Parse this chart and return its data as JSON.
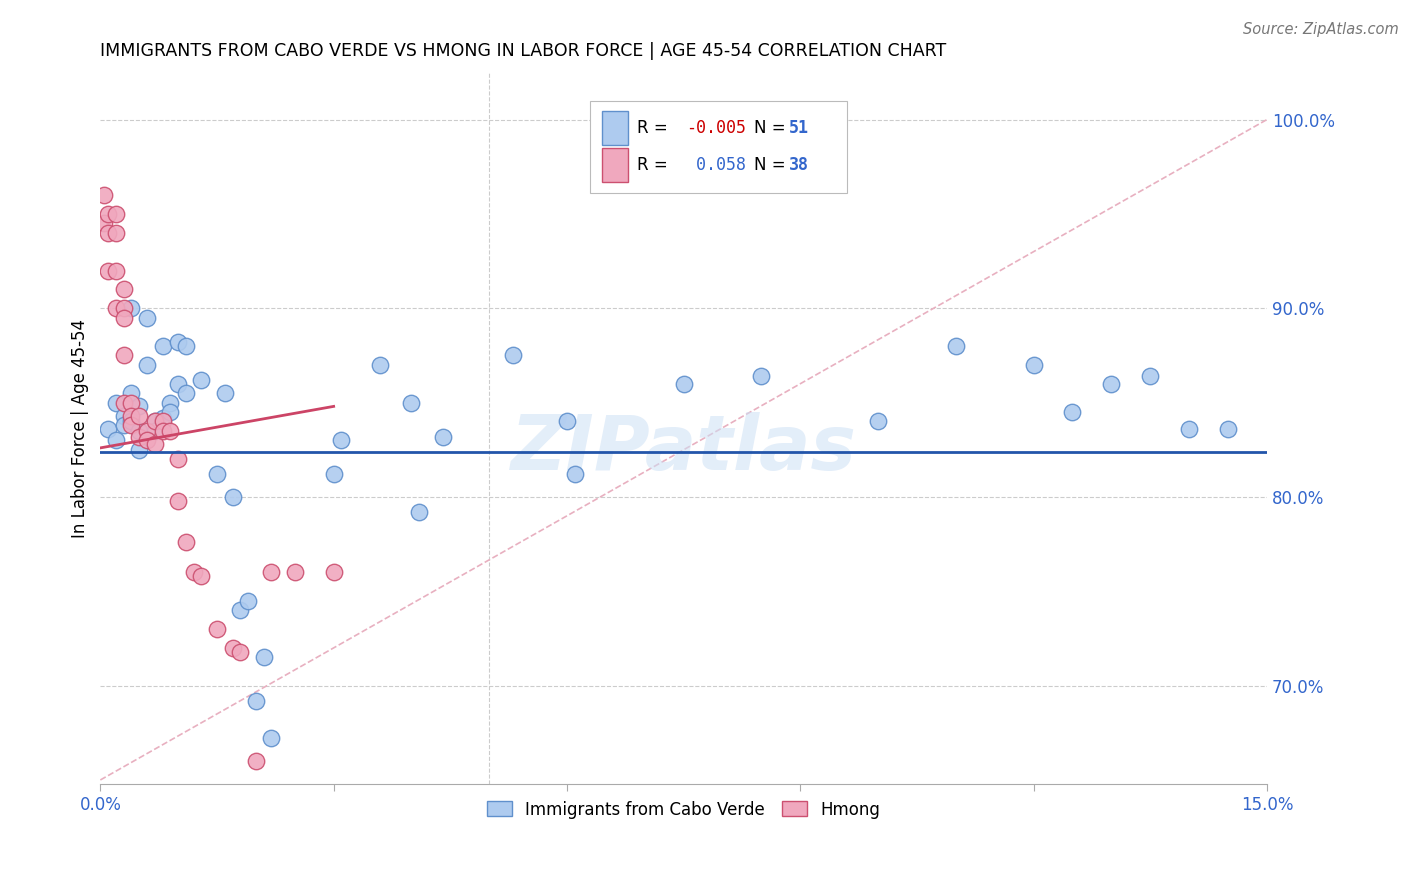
{
  "title": "IMMIGRANTS FROM CABO VERDE VS HMONG IN LABOR FORCE | AGE 45-54 CORRELATION CHART",
  "source": "Source: ZipAtlas.com",
  "ylabel": "In Labor Force | Age 45-54",
  "xlim": [
    0.0,
    0.15
  ],
  "ylim": [
    0.648,
    1.025
  ],
  "yticks_right": [
    0.7,
    0.8,
    0.9,
    1.0
  ],
  "ytick_labels_right": [
    "70.0%",
    "80.0%",
    "90.0%",
    "100.0%"
  ],
  "cabo_verde_R": -0.005,
  "cabo_verde_N": 51,
  "hmong_R": 0.058,
  "hmong_N": 38,
  "cabo_verde_color": "#aecbef",
  "hmong_color": "#f0a8be",
  "cabo_verde_edge": "#6090cc",
  "hmong_edge": "#cc5070",
  "regression_line_cabo_color": "#2255aa",
  "regression_line_hmong_color": "#cc4466",
  "diagonal_dashed_color": "#e8b0c0",
  "cabo_verde_x": [
    0.001,
    0.002,
    0.002,
    0.003,
    0.003,
    0.004,
    0.004,
    0.004,
    0.005,
    0.005,
    0.005,
    0.006,
    0.006,
    0.007,
    0.007,
    0.008,
    0.008,
    0.009,
    0.009,
    0.01,
    0.01,
    0.011,
    0.011,
    0.013,
    0.015,
    0.016,
    0.017,
    0.018,
    0.019,
    0.02,
    0.021,
    0.022,
    0.03,
    0.031,
    0.036,
    0.04,
    0.041,
    0.044,
    0.053,
    0.06,
    0.061,
    0.075,
    0.085,
    0.1,
    0.11,
    0.12,
    0.125,
    0.13,
    0.135,
    0.14,
    0.145
  ],
  "cabo_verde_y": [
    0.836,
    0.85,
    0.83,
    0.843,
    0.838,
    0.9,
    0.855,
    0.84,
    0.848,
    0.835,
    0.825,
    0.895,
    0.87,
    0.84,
    0.835,
    0.88,
    0.842,
    0.85,
    0.845,
    0.882,
    0.86,
    0.88,
    0.855,
    0.862,
    0.812,
    0.855,
    0.8,
    0.74,
    0.745,
    0.692,
    0.715,
    0.672,
    0.812,
    0.83,
    0.87,
    0.85,
    0.792,
    0.832,
    0.875,
    0.84,
    0.812,
    0.86,
    0.864,
    0.84,
    0.88,
    0.87,
    0.845,
    0.86,
    0.864,
    0.836,
    0.836
  ],
  "hmong_x": [
    0.0005,
    0.0005,
    0.001,
    0.001,
    0.001,
    0.002,
    0.002,
    0.002,
    0.002,
    0.003,
    0.003,
    0.003,
    0.003,
    0.003,
    0.004,
    0.004,
    0.004,
    0.005,
    0.005,
    0.006,
    0.006,
    0.007,
    0.007,
    0.008,
    0.008,
    0.009,
    0.01,
    0.01,
    0.011,
    0.012,
    0.013,
    0.015,
    0.017,
    0.018,
    0.02,
    0.022,
    0.025,
    0.03
  ],
  "hmong_y": [
    0.96,
    0.945,
    0.95,
    0.94,
    0.92,
    0.95,
    0.94,
    0.92,
    0.9,
    0.91,
    0.9,
    0.895,
    0.875,
    0.85,
    0.85,
    0.843,
    0.838,
    0.843,
    0.832,
    0.835,
    0.83,
    0.84,
    0.828,
    0.84,
    0.835,
    0.835,
    0.82,
    0.798,
    0.776,
    0.76,
    0.758,
    0.73,
    0.72,
    0.718,
    0.66,
    0.76,
    0.76,
    0.76
  ],
  "blue_line_y": 0.824,
  "pink_line_x0": 0.0,
  "pink_line_y0": 0.826,
  "pink_line_x1": 0.03,
  "pink_line_y1": 0.848
}
